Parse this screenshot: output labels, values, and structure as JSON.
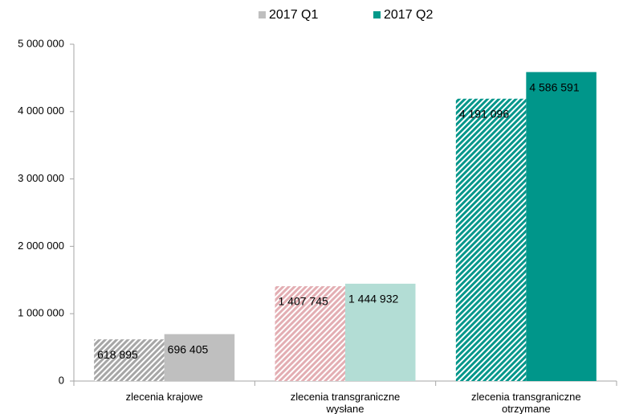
{
  "chart_data": {
    "type": "bar",
    "categories": [
      "zlecenia krajowe",
      "zlecenia transgraniczne wysłane",
      "zlecenia transgraniczne otrzymane"
    ],
    "series": [
      {
        "name": "2017 Q1",
        "color": "#bfbfbf",
        "pattern": "hatch",
        "point_colors": [
          "#a6a6a6",
          "#e3aeb3",
          "#00968a"
        ],
        "values": [
          618895,
          1407745,
          4191096
        ],
        "value_labels": [
          "618 895",
          "1 407 745",
          "4 191 096"
        ]
      },
      {
        "name": "2017 Q2",
        "color": "#00998a",
        "pattern": "solid",
        "point_colors": [
          "#bfbfbf",
          "#b3ddd5",
          "#00968a"
        ],
        "values": [
          696405,
          1444932,
          4586591
        ],
        "value_labels": [
          "696 405",
          "1 444 932",
          "4 586 591"
        ]
      }
    ],
    "ylim": [
      0,
      5000000
    ],
    "yticks": [
      0,
      {
        "value": 1000000,
        "label": "1 000 000"
      },
      {
        "value": 2000000,
        "label": "2 000 000"
      },
      {
        "value": 3000000,
        "label": "3 000 000"
      },
      {
        "value": 4000000,
        "label": "4 000 000"
      },
      {
        "value": 5000000,
        "label": "5 000 000"
      }
    ],
    "legend": "top",
    "grid": false
  }
}
